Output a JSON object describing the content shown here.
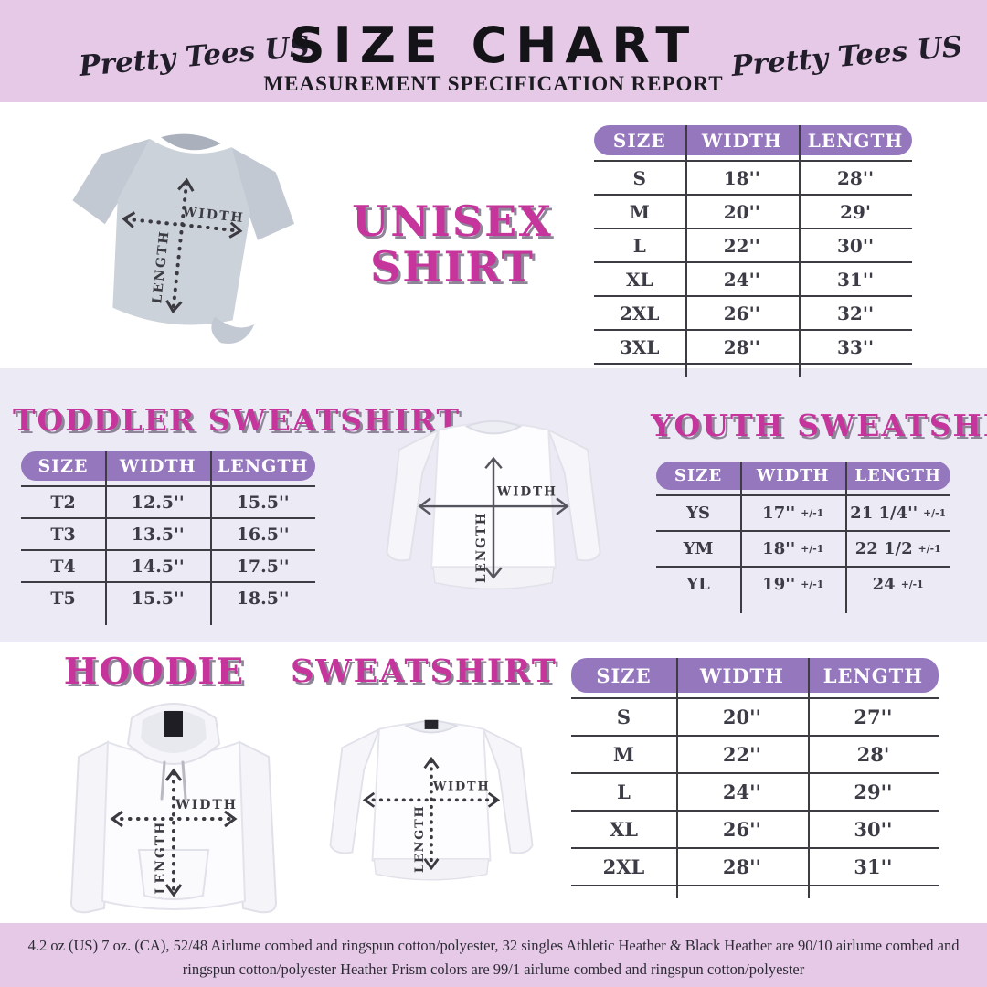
{
  "colors": {
    "band_bg": "#e5c9e6",
    "mid_band_bg": "#ecebf5",
    "table_header_bg": "#9577be",
    "accent_magenta": "#c5359b",
    "title_shadow": "#8f8599",
    "line": "#3c3c42",
    "text_dark": "#3c3c46"
  },
  "header": {
    "logo_left": "Pretty Tees US",
    "logo_right": "Pretty Tees US",
    "title": "SIZE CHART",
    "subtitle": "MEASUREMENT SPECIFICATION REPORT"
  },
  "diagram": {
    "width": "WIDTH",
    "length": "LENGTH"
  },
  "unisex": {
    "title_line1": "UNISEX",
    "title_line2": "SHIRT",
    "table": {
      "headers": [
        "SIZE",
        "WIDTH",
        "LENGTH"
      ],
      "rows": [
        [
          "S",
          "18''",
          "28''"
        ],
        [
          "M",
          "20''",
          "29'"
        ],
        [
          "L",
          "22''",
          "30''"
        ],
        [
          "XL",
          "24''",
          "31''"
        ],
        [
          "2XL",
          "26''",
          "32''"
        ],
        [
          "3XL",
          "28''",
          "33''"
        ]
      ]
    }
  },
  "toddler": {
    "title": "TODDLER SWEATSHIRT",
    "table": {
      "headers": [
        "SIZE",
        "WIDTH",
        "LENGTH"
      ],
      "rows": [
        [
          "T2",
          "12.5''",
          "15.5''"
        ],
        [
          "T3",
          "13.5''",
          "16.5''"
        ],
        [
          "T4",
          "14.5''",
          "17.5''"
        ],
        [
          "T5",
          "15.5''",
          "18.5''"
        ]
      ]
    }
  },
  "youth": {
    "title": "YOUTH SWEATSHIRT",
    "table": {
      "headers": [
        "SIZE",
        "WIDTH",
        "LENGTH"
      ],
      "rows": [
        [
          "YS",
          "17'' +/-1",
          "21 1/4'' +/-1"
        ],
        [
          "YM",
          "18'' +/-1",
          "22 1/2 +/-1"
        ],
        [
          "YL",
          "19'' +/-1",
          "24 +/-1"
        ]
      ]
    }
  },
  "hoodie": {
    "title": "HOODIE"
  },
  "sweatshirt": {
    "title": "SWEATSHIRT"
  },
  "bottom_table": {
    "headers": [
      "SIZE",
      "WIDTH",
      "LENGTH"
    ],
    "rows": [
      [
        "S",
        "20''",
        "27''"
      ],
      [
        "M",
        "22''",
        "28'"
      ],
      [
        "L",
        "24''",
        "29''"
      ],
      [
        "XL",
        "26''",
        "30''"
      ],
      [
        "2XL",
        "28''",
        "31''"
      ]
    ]
  },
  "footer": {
    "line1": "4.2 oz (US) 7 oz. (CA), 52/48 Airlume combed and ringspun cotton/polyester, 32 singles Athletic Heather & Black Heather are 90/10 airlume combed and",
    "line2": "ringspun cotton/polyester Heather Prism colors are 99/1 airlume combed and ringspun cotton/polyester"
  }
}
